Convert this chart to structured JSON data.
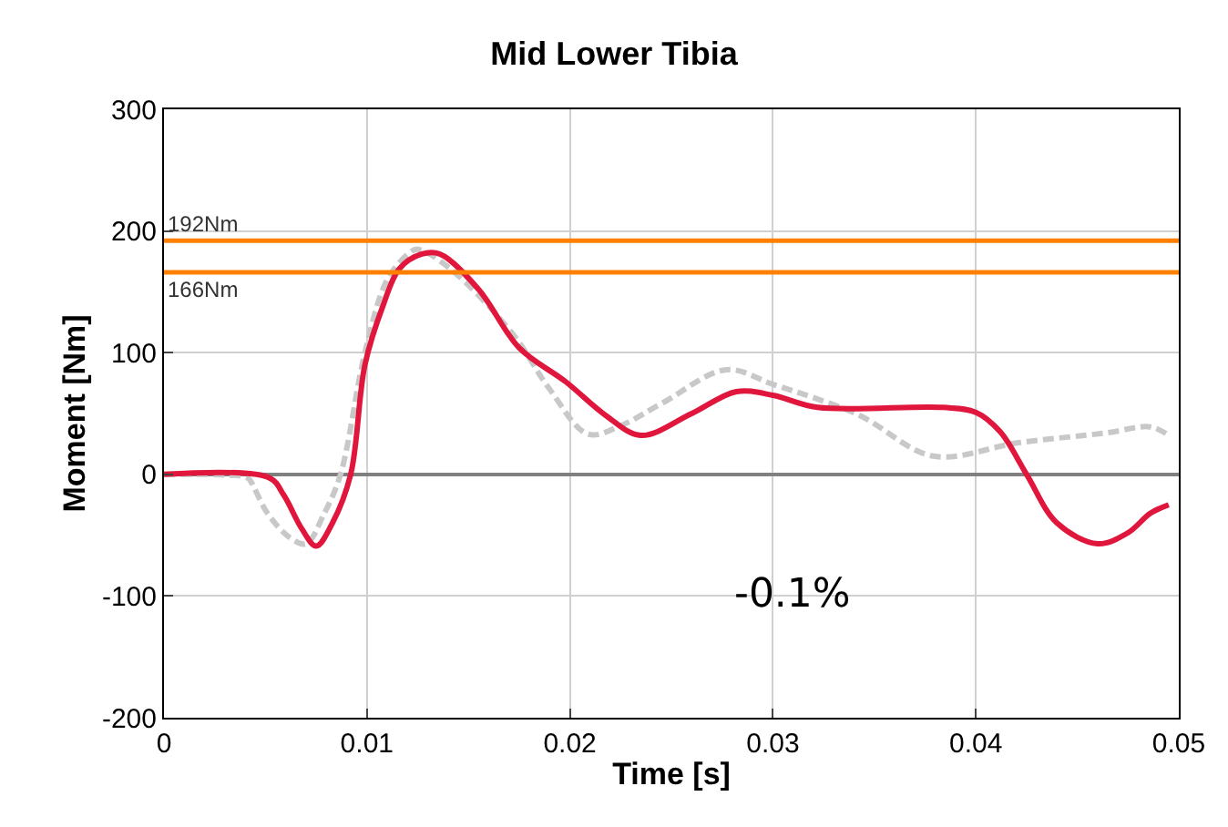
{
  "chart_data": {
    "type": "line",
    "title": "Mid Lower Tibia",
    "xlabel": "Time [s]",
    "ylabel": "Moment [Nm]",
    "xlim": [
      0,
      0.05
    ],
    "xticks": [
      0,
      0.01,
      0.02,
      0.03,
      0.04,
      0.05
    ],
    "ylim": [
      -200,
      300
    ],
    "yticks": [
      -200,
      -100,
      0,
      100,
      200,
      300
    ],
    "grid": true,
    "series": [
      {
        "color": "#c8c8c8",
        "line_style": "dashed",
        "x": [
          0,
          0.004,
          0.0042,
          0.0051,
          0.0062,
          0.007,
          0.0079,
          0.0087,
          0.0099,
          0.011,
          0.0121,
          0.0125,
          0.0141,
          0.0172,
          0.019,
          0.0209,
          0.0225,
          0.0246,
          0.0277,
          0.03,
          0.0342,
          0.0379,
          0.0421,
          0.0464,
          0.0486,
          0.0495
        ],
        "values": [
          0,
          -2,
          -4,
          -32,
          -52,
          -57,
          -32,
          0,
          100,
          160,
          182,
          185,
          169,
          115,
          70,
          33,
          40,
          59,
          86,
          74,
          49,
          15,
          26,
          34,
          39,
          32
        ]
      },
      {
        "color": "#e0163c",
        "line_style": "solid",
        "x": [
          0,
          0.0052,
          0.0059,
          0.0068,
          0.0075,
          0.0083,
          0.0092,
          0.0099,
          0.0108,
          0.0116,
          0.0127,
          0.0136,
          0.0155,
          0.0175,
          0.0198,
          0.0218,
          0.0235,
          0.026,
          0.0282,
          0.03,
          0.0322,
          0.0384,
          0.04,
          0.0412,
          0.0425,
          0.044,
          0.046,
          0.0475,
          0.0486,
          0.0495
        ],
        "values": [
          0,
          -3,
          -17,
          -45,
          -59,
          -40,
          0,
          90,
          139,
          169,
          181,
          181,
          152,
          104,
          76,
          48,
          32,
          50,
          68,
          65,
          55,
          55,
          51,
          35,
          0,
          -40,
          -57,
          -48,
          -32,
          -25
        ]
      }
    ],
    "ref_lines": [
      {
        "axis": "y",
        "value": 192,
        "label": "192Nm",
        "color": "#ff8000"
      },
      {
        "axis": "y",
        "value": 166,
        "label": "166Nm",
        "color": "#ff8000"
      }
    ],
    "annotations": [
      "-0.1%"
    ]
  }
}
